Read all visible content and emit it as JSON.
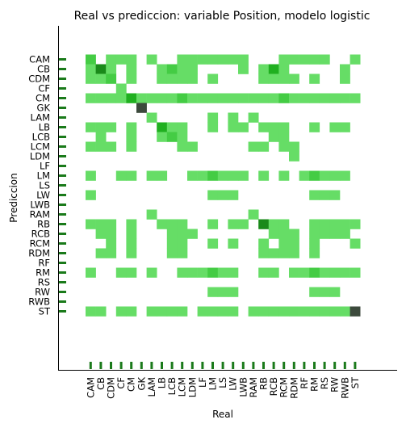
{
  "chart_data": {
    "type": "heatmap",
    "title": "Real vs prediccion: variable Position, modelo logistic",
    "xlabel": "Real",
    "ylabel": "Prediccion",
    "x_categories": [
      "CAM",
      "CB",
      "CDM",
      "CF",
      "CM",
      "GK",
      "LAM",
      "LB",
      "LCB",
      "LCM",
      "LDM",
      "LF",
      "LM",
      "LS",
      "LW",
      "LWB",
      "RAM",
      "RB",
      "RCB",
      "RCM",
      "RDM",
      "RF",
      "RM",
      "RS",
      "RW",
      "RWB",
      "ST"
    ],
    "y_categories": [
      "CAM",
      "CB",
      "CDM",
      "CF",
      "CM",
      "GK",
      "LAM",
      "LB",
      "LCB",
      "LCM",
      "LDM",
      "LF",
      "LM",
      "LS",
      "LW",
      "LWB",
      "RAM",
      "RB",
      "RCB",
      "RCM",
      "RDM",
      "RF",
      "RM",
      "RS",
      "RW",
      "RWB",
      "ST"
    ],
    "colors": {
      "low": "#66dd66",
      "mid": "#44cc44",
      "high": "#20b020",
      "very_high": "#1a8a1a",
      "max": "#3c4a3c",
      "tick": "#1a7a1a"
    },
    "cells": [
      {
        "y": "CAM",
        "x": "CAM",
        "v": 2
      },
      {
        "y": "CAM",
        "x": "CDM",
        "v": 1
      },
      {
        "y": "CAM",
        "x": "CF",
        "v": 1
      },
      {
        "y": "CAM",
        "x": "CM",
        "v": 1
      },
      {
        "y": "CAM",
        "x": "LAM",
        "v": 1
      },
      {
        "y": "CAM",
        "x": "LCM",
        "v": 1
      },
      {
        "y": "CAM",
        "x": "LDM",
        "v": 1
      },
      {
        "y": "CAM",
        "x": "LF",
        "v": 1
      },
      {
        "y": "CAM",
        "x": "LM",
        "v": 1
      },
      {
        "y": "CAM",
        "x": "LS",
        "v": 1
      },
      {
        "y": "CAM",
        "x": "LW",
        "v": 1
      },
      {
        "y": "CAM",
        "x": "LWB",
        "v": 1
      },
      {
        "y": "CAM",
        "x": "RCM",
        "v": 1
      },
      {
        "y": "CAM",
        "x": "RDM",
        "v": 1
      },
      {
        "y": "CAM",
        "x": "RF",
        "v": 1
      },
      {
        "y": "CAM",
        "x": "RM",
        "v": 1
      },
      {
        "y": "CAM",
        "x": "RS",
        "v": 1
      },
      {
        "y": "CAM",
        "x": "ST",
        "v": 1
      },
      {
        "y": "CB",
        "x": "CAM",
        "v": 1
      },
      {
        "y": "CB",
        "x": "CB",
        "v": 4
      },
      {
        "y": "CB",
        "x": "CDM",
        "v": 1
      },
      {
        "y": "CB",
        "x": "CM",
        "v": 1
      },
      {
        "y": "CB",
        "x": "LB",
        "v": 1
      },
      {
        "y": "CB",
        "x": "LCB",
        "v": 2
      },
      {
        "y": "CB",
        "x": "LCM",
        "v": 1
      },
      {
        "y": "CB",
        "x": "LDM",
        "v": 1
      },
      {
        "y": "CB",
        "x": "LWB",
        "v": 1
      },
      {
        "y": "CB",
        "x": "RB",
        "v": 1
      },
      {
        "y": "CB",
        "x": "RCB",
        "v": 3
      },
      {
        "y": "CB",
        "x": "RCM",
        "v": 1
      },
      {
        "y": "CB",
        "x": "RWB",
        "v": 1
      },
      {
        "y": "CDM",
        "x": "CAM",
        "v": 1
      },
      {
        "y": "CDM",
        "x": "CB",
        "v": 1
      },
      {
        "y": "CDM",
        "x": "CDM",
        "v": 2
      },
      {
        "y": "CDM",
        "x": "CM",
        "v": 1
      },
      {
        "y": "CDM",
        "x": "LB",
        "v": 1
      },
      {
        "y": "CDM",
        "x": "LCB",
        "v": 1
      },
      {
        "y": "CDM",
        "x": "LCM",
        "v": 1
      },
      {
        "y": "CDM",
        "x": "LDM",
        "v": 1
      },
      {
        "y": "CDM",
        "x": "LM",
        "v": 1
      },
      {
        "y": "CDM",
        "x": "RB",
        "v": 1
      },
      {
        "y": "CDM",
        "x": "RCB",
        "v": 1
      },
      {
        "y": "CDM",
        "x": "RCM",
        "v": 1
      },
      {
        "y": "CDM",
        "x": "RDM",
        "v": 1
      },
      {
        "y": "CDM",
        "x": "RM",
        "v": 1
      },
      {
        "y": "CDM",
        "x": "RWB",
        "v": 1
      },
      {
        "y": "CF",
        "x": "CF",
        "v": 1
      },
      {
        "y": "CM",
        "x": "CAM",
        "v": 1
      },
      {
        "y": "CM",
        "x": "CB",
        "v": 1
      },
      {
        "y": "CM",
        "x": "CDM",
        "v": 1
      },
      {
        "y": "CM",
        "x": "CF",
        "v": 1
      },
      {
        "y": "CM",
        "x": "CM",
        "v": 3
      },
      {
        "y": "CM",
        "x": "GK",
        "v": 1
      },
      {
        "y": "CM",
        "x": "LAM",
        "v": 1
      },
      {
        "y": "CM",
        "x": "LB",
        "v": 1
      },
      {
        "y": "CM",
        "x": "LCB",
        "v": 1
      },
      {
        "y": "CM",
        "x": "LCM",
        "v": 2
      },
      {
        "y": "CM",
        "x": "LDM",
        "v": 1
      },
      {
        "y": "CM",
        "x": "LF",
        "v": 1
      },
      {
        "y": "CM",
        "x": "LM",
        "v": 1
      },
      {
        "y": "CM",
        "x": "LS",
        "v": 1
      },
      {
        "y": "CM",
        "x": "LW",
        "v": 1
      },
      {
        "y": "CM",
        "x": "LWB",
        "v": 1
      },
      {
        "y": "CM",
        "x": "RAM",
        "v": 1
      },
      {
        "y": "CM",
        "x": "RB",
        "v": 1
      },
      {
        "y": "CM",
        "x": "RCB",
        "v": 1
      },
      {
        "y": "CM",
        "x": "RCM",
        "v": 2
      },
      {
        "y": "CM",
        "x": "RDM",
        "v": 1
      },
      {
        "y": "CM",
        "x": "RF",
        "v": 1
      },
      {
        "y": "CM",
        "x": "RM",
        "v": 1
      },
      {
        "y": "CM",
        "x": "RS",
        "v": 1
      },
      {
        "y": "CM",
        "x": "RW",
        "v": 1
      },
      {
        "y": "CM",
        "x": "RWB",
        "v": 1
      },
      {
        "y": "CM",
        "x": "ST",
        "v": 1
      },
      {
        "y": "GK",
        "x": "GK",
        "v": 5
      },
      {
        "y": "LAM",
        "x": "LAM",
        "v": 1
      },
      {
        "y": "LAM",
        "x": "LM",
        "v": 1
      },
      {
        "y": "LAM",
        "x": "LW",
        "v": 1
      },
      {
        "y": "LAM",
        "x": "RAM",
        "v": 1
      },
      {
        "y": "LB",
        "x": "CAM",
        "v": 1
      },
      {
        "y": "LB",
        "x": "CB",
        "v": 1
      },
      {
        "y": "LB",
        "x": "CDM",
        "v": 1
      },
      {
        "y": "LB",
        "x": "CM",
        "v": 1
      },
      {
        "y": "LB",
        "x": "LB",
        "v": 3
      },
      {
        "y": "LB",
        "x": "LCB",
        "v": 1
      },
      {
        "y": "LB",
        "x": "LCM",
        "v": 1
      },
      {
        "y": "LB",
        "x": "LM",
        "v": 1
      },
      {
        "y": "LB",
        "x": "LW",
        "v": 1
      },
      {
        "y": "LB",
        "x": "LWB",
        "v": 1
      },
      {
        "y": "LB",
        "x": "RB",
        "v": 1
      },
      {
        "y": "LB",
        "x": "RCB",
        "v": 1
      },
      {
        "y": "LB",
        "x": "RCM",
        "v": 1
      },
      {
        "y": "LB",
        "x": "RM",
        "v": 1
      },
      {
        "y": "LB",
        "x": "RW",
        "v": 1
      },
      {
        "y": "LB",
        "x": "RWB",
        "v": 1
      },
      {
        "y": "LCB",
        "x": "CB",
        "v": 1
      },
      {
        "y": "LCB",
        "x": "CM",
        "v": 1
      },
      {
        "y": "LCB",
        "x": "LB",
        "v": 1
      },
      {
        "y": "LCB",
        "x": "LCB",
        "v": 2
      },
      {
        "y": "LCB",
        "x": "LCM",
        "v": 1
      },
      {
        "y": "LCB",
        "x": "RCB",
        "v": 1
      },
      {
        "y": "LCB",
        "x": "RCM",
        "v": 1
      },
      {
        "y": "LCM",
        "x": "CAM",
        "v": 1
      },
      {
        "y": "LCM",
        "x": "CB",
        "v": 1
      },
      {
        "y": "LCM",
        "x": "CDM",
        "v": 1
      },
      {
        "y": "LCM",
        "x": "CM",
        "v": 1
      },
      {
        "y": "LCM",
        "x": "LCM",
        "v": 1
      },
      {
        "y": "LCM",
        "x": "LDM",
        "v": 1
      },
      {
        "y": "LCM",
        "x": "RAM",
        "v": 1
      },
      {
        "y": "LCM",
        "x": "RB",
        "v": 1
      },
      {
        "y": "LCM",
        "x": "RCM",
        "v": 1
      },
      {
        "y": "LCM",
        "x": "RDM",
        "v": 1
      },
      {
        "y": "LDM",
        "x": "RDM",
        "v": 1
      },
      {
        "y": "LM",
        "x": "CAM",
        "v": 1
      },
      {
        "y": "LM",
        "x": "CF",
        "v": 1
      },
      {
        "y": "LM",
        "x": "CM",
        "v": 1
      },
      {
        "y": "LM",
        "x": "LAM",
        "v": 1
      },
      {
        "y": "LM",
        "x": "LB",
        "v": 1
      },
      {
        "y": "LM",
        "x": "LDM",
        "v": 1
      },
      {
        "y": "LM",
        "x": "LF",
        "v": 1
      },
      {
        "y": "LM",
        "x": "LM",
        "v": 2
      },
      {
        "y": "LM",
        "x": "LS",
        "v": 1
      },
      {
        "y": "LM",
        "x": "LW",
        "v": 1
      },
      {
        "y": "LM",
        "x": "LWB",
        "v": 1
      },
      {
        "y": "LM",
        "x": "RB",
        "v": 1
      },
      {
        "y": "LM",
        "x": "RCM",
        "v": 1
      },
      {
        "y": "LM",
        "x": "RF",
        "v": 1
      },
      {
        "y": "LM",
        "x": "RM",
        "v": 2
      },
      {
        "y": "LM",
        "x": "RS",
        "v": 1
      },
      {
        "y": "LM",
        "x": "RW",
        "v": 1
      },
      {
        "y": "LM",
        "x": "RWB",
        "v": 1
      },
      {
        "y": "LW",
        "x": "CAM",
        "v": 1
      },
      {
        "y": "LW",
        "x": "LM",
        "v": 1
      },
      {
        "y": "LW",
        "x": "LS",
        "v": 1
      },
      {
        "y": "LW",
        "x": "LW",
        "v": 1
      },
      {
        "y": "LW",
        "x": "RM",
        "v": 1
      },
      {
        "y": "LW",
        "x": "RS",
        "v": 1
      },
      {
        "y": "LW",
        "x": "RW",
        "v": 1
      },
      {
        "y": "RAM",
        "x": "LAM",
        "v": 1
      },
      {
        "y": "RAM",
        "x": "RAM",
        "v": 1
      },
      {
        "y": "RB",
        "x": "CAM",
        "v": 1
      },
      {
        "y": "RB",
        "x": "CB",
        "v": 1
      },
      {
        "y": "RB",
        "x": "CDM",
        "v": 1
      },
      {
        "y": "RB",
        "x": "CM",
        "v": 1
      },
      {
        "y": "RB",
        "x": "LB",
        "v": 1
      },
      {
        "y": "RB",
        "x": "LCB",
        "v": 1
      },
      {
        "y": "RB",
        "x": "LCM",
        "v": 1
      },
      {
        "y": "RB",
        "x": "LM",
        "v": 1
      },
      {
        "y": "RB",
        "x": "LW",
        "v": 1
      },
      {
        "y": "RB",
        "x": "LWB",
        "v": 1
      },
      {
        "y": "RB",
        "x": "RB",
        "v": 4
      },
      {
        "y": "RB",
        "x": "RCB",
        "v": 1
      },
      {
        "y": "RB",
        "x": "RCM",
        "v": 1
      },
      {
        "y": "RB",
        "x": "RM",
        "v": 1
      },
      {
        "y": "RB",
        "x": "RS",
        "v": 1
      },
      {
        "y": "RB",
        "x": "RW",
        "v": 1
      },
      {
        "y": "RB",
        "x": "RWB",
        "v": 1
      },
      {
        "y": "RB",
        "x": "ST",
        "v": 1
      },
      {
        "y": "RCB",
        "x": "CB",
        "v": 1
      },
      {
        "y": "RCB",
        "x": "CDM",
        "v": 1
      },
      {
        "y": "RCB",
        "x": "CM",
        "v": 1
      },
      {
        "y": "RCB",
        "x": "LCB",
        "v": 1
      },
      {
        "y": "RCB",
        "x": "LCM",
        "v": 1
      },
      {
        "y": "RCB",
        "x": "LDM",
        "v": 1
      },
      {
        "y": "RCB",
        "x": "RCB",
        "v": 1
      },
      {
        "y": "RCB",
        "x": "RCM",
        "v": 1
      },
      {
        "y": "RCB",
        "x": "RDM",
        "v": 1
      },
      {
        "y": "RCB",
        "x": "RM",
        "v": 1
      },
      {
        "y": "RCB",
        "x": "RS",
        "v": 1
      },
      {
        "y": "RCB",
        "x": "RW",
        "v": 1
      },
      {
        "y": "RCB",
        "x": "RWB",
        "v": 1
      },
      {
        "y": "RCM",
        "x": "CDM",
        "v": 1
      },
      {
        "y": "RCM",
        "x": "CM",
        "v": 1
      },
      {
        "y": "RCM",
        "x": "LCB",
        "v": 1
      },
      {
        "y": "RCM",
        "x": "LCM",
        "v": 1
      },
      {
        "y": "RCM",
        "x": "LM",
        "v": 1
      },
      {
        "y": "RCM",
        "x": "LW",
        "v": 1
      },
      {
        "y": "RCM",
        "x": "RB",
        "v": 1
      },
      {
        "y": "RCM",
        "x": "RCM",
        "v": 1
      },
      {
        "y": "RCM",
        "x": "RDM",
        "v": 1
      },
      {
        "y": "RCM",
        "x": "RM",
        "v": 1
      },
      {
        "y": "RCM",
        "x": "ST",
        "v": 1
      },
      {
        "y": "RDM",
        "x": "CB",
        "v": 1
      },
      {
        "y": "RDM",
        "x": "CDM",
        "v": 1
      },
      {
        "y": "RDM",
        "x": "CM",
        "v": 1
      },
      {
        "y": "RDM",
        "x": "LCB",
        "v": 1
      },
      {
        "y": "RDM",
        "x": "LCM",
        "v": 1
      },
      {
        "y": "RDM",
        "x": "RB",
        "v": 1
      },
      {
        "y": "RDM",
        "x": "RCB",
        "v": 1
      },
      {
        "y": "RDM",
        "x": "RCM",
        "v": 1
      },
      {
        "y": "RDM",
        "x": "RDM",
        "v": 1
      },
      {
        "y": "RDM",
        "x": "RM",
        "v": 1
      },
      {
        "y": "RM",
        "x": "CAM",
        "v": 1
      },
      {
        "y": "RM",
        "x": "CF",
        "v": 1
      },
      {
        "y": "RM",
        "x": "CM",
        "v": 1
      },
      {
        "y": "RM",
        "x": "LAM",
        "v": 1
      },
      {
        "y": "RM",
        "x": "LCM",
        "v": 1
      },
      {
        "y": "RM",
        "x": "LDM",
        "v": 1
      },
      {
        "y": "RM",
        "x": "LF",
        "v": 1
      },
      {
        "y": "RM",
        "x": "LM",
        "v": 2
      },
      {
        "y": "RM",
        "x": "LS",
        "v": 1
      },
      {
        "y": "RM",
        "x": "LW",
        "v": 1
      },
      {
        "y": "RM",
        "x": "RB",
        "v": 1
      },
      {
        "y": "RM",
        "x": "RCB",
        "v": 1
      },
      {
        "y": "RM",
        "x": "RDM",
        "v": 1
      },
      {
        "y": "RM",
        "x": "RF",
        "v": 1
      },
      {
        "y": "RM",
        "x": "RM",
        "v": 2
      },
      {
        "y": "RM",
        "x": "RS",
        "v": 1
      },
      {
        "y": "RM",
        "x": "RW",
        "v": 1
      },
      {
        "y": "RM",
        "x": "RWB",
        "v": 1
      },
      {
        "y": "RM",
        "x": "ST",
        "v": 1
      },
      {
        "y": "RW",
        "x": "LM",
        "v": 1
      },
      {
        "y": "RW",
        "x": "LS",
        "v": 1
      },
      {
        "y": "RW",
        "x": "LW",
        "v": 1
      },
      {
        "y": "RW",
        "x": "RM",
        "v": 1
      },
      {
        "y": "RW",
        "x": "RS",
        "v": 1
      },
      {
        "y": "RW",
        "x": "RW",
        "v": 1
      },
      {
        "y": "ST",
        "x": "CAM",
        "v": 1
      },
      {
        "y": "ST",
        "x": "CB",
        "v": 1
      },
      {
        "y": "ST",
        "x": "CF",
        "v": 1
      },
      {
        "y": "ST",
        "x": "CM",
        "v": 1
      },
      {
        "y": "ST",
        "x": "LAM",
        "v": 1
      },
      {
        "y": "ST",
        "x": "LB",
        "v": 1
      },
      {
        "y": "ST",
        "x": "LCB",
        "v": 1
      },
      {
        "y": "ST",
        "x": "LCM",
        "v": 1
      },
      {
        "y": "ST",
        "x": "LF",
        "v": 1
      },
      {
        "y": "ST",
        "x": "LM",
        "v": 1
      },
      {
        "y": "ST",
        "x": "LS",
        "v": 1
      },
      {
        "y": "ST",
        "x": "LW",
        "v": 1
      },
      {
        "y": "ST",
        "x": "RAM",
        "v": 1
      },
      {
        "y": "ST",
        "x": "RB",
        "v": 1
      },
      {
        "y": "ST",
        "x": "RCB",
        "v": 1
      },
      {
        "y": "ST",
        "x": "RCM",
        "v": 1
      },
      {
        "y": "ST",
        "x": "RDM",
        "v": 1
      },
      {
        "y": "ST",
        "x": "RF",
        "v": 1
      },
      {
        "y": "ST",
        "x": "RM",
        "v": 1
      },
      {
        "y": "ST",
        "x": "RS",
        "v": 1
      },
      {
        "y": "ST",
        "x": "RW",
        "v": 1
      },
      {
        "y": "ST",
        "x": "RWB",
        "v": 1
      },
      {
        "y": "ST",
        "x": "ST",
        "v": 5
      }
    ]
  }
}
